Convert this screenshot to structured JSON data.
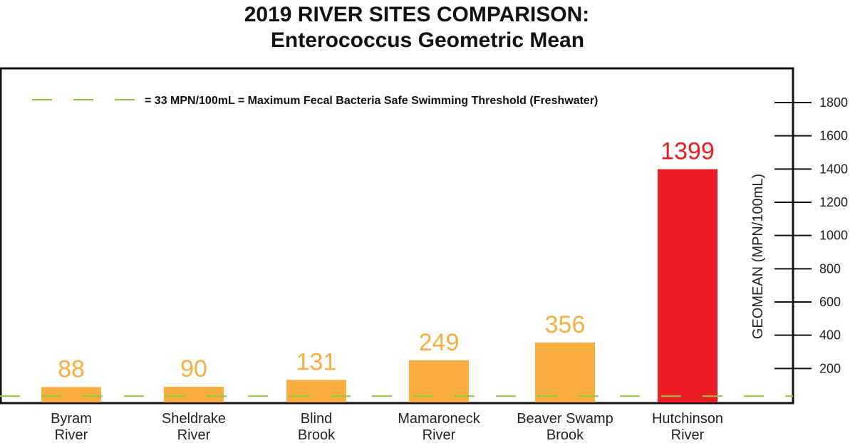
{
  "chart_data": {
    "type": "bar",
    "title": "2019 RIVER SITES COMPARISON:",
    "subtitle": "Enterococcus Geometric Mean",
    "categories": [
      [
        "Byram",
        "River"
      ],
      [
        "Sheldrake",
        "River"
      ],
      [
        "Blind",
        "Brook"
      ],
      [
        "Mamaroneck",
        "River"
      ],
      [
        "Beaver Swamp",
        "Brook"
      ],
      [
        "Hutchinson",
        "River"
      ]
    ],
    "values": [
      88,
      90,
      131,
      249,
      356,
      1399
    ],
    "value_labels": [
      "88",
      "90",
      "131",
      "249",
      "356",
      "1399"
    ],
    "bar_colors": [
      "#F9AE42",
      "#F9AE42",
      "#F9AE42",
      "#F9AE42",
      "#F9AE42",
      "#ED1C24"
    ],
    "ylabel": "GEOMEAN (MPN/100mL)",
    "yaxis_position": "right",
    "ylim": [
      0,
      1800
    ],
    "yticks": [
      "200",
      "400",
      "600",
      "800",
      "1000",
      "1200",
      "1400",
      "1600",
      "1800"
    ],
    "threshold": {
      "value": 33,
      "color": "#8DC63F",
      "style": "dashed",
      "label": "= 33 MPN/100mL = Maximum Fecal Bacteria Safe Swimming Threshold (Freshwater)"
    },
    "legend_placement": "top-left",
    "grid": false
  }
}
